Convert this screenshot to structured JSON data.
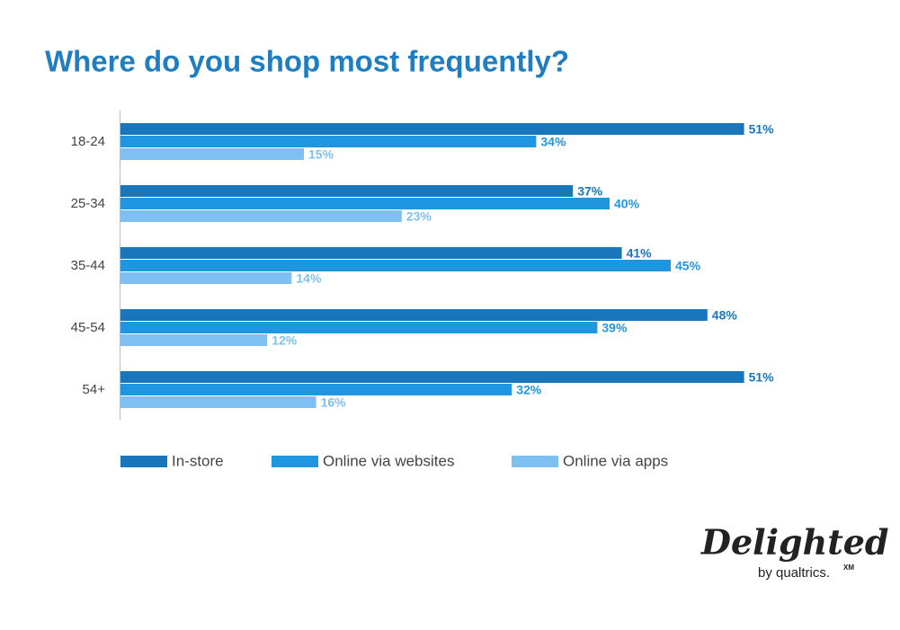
{
  "chart_data": {
    "type": "hbar",
    "title": "Where do you shop most frequently?",
    "categories": [
      "18-24",
      "25-34",
      "35-44",
      "45-54",
      "54+"
    ],
    "series": [
      {
        "name": "In-store",
        "color": "#1a76bb",
        "values": [
          51,
          37,
          41,
          48,
          51
        ],
        "value_labels": [
          "51%",
          "37%",
          "41%",
          "48%",
          "51%"
        ]
      },
      {
        "name": "Online via websites",
        "color": "#2196e0",
        "values": [
          34,
          40,
          45,
          39,
          32
        ],
        "value_labels": [
          "34%",
          "40%",
          "45%",
          "39%",
          "32%"
        ]
      },
      {
        "name": "Online via apps",
        "color": "#7fc0f2",
        "values": [
          15,
          23,
          14,
          12,
          16
        ],
        "value_labels": [
          "15%",
          "23%",
          "14%",
          "12%",
          "16%"
        ]
      }
    ],
    "xlim": [
      0,
      55
    ],
    "legend": "bottom"
  },
  "logo": {
    "name": "Delighted",
    "tagline": "by qualtrics.",
    "mark": "XM"
  }
}
